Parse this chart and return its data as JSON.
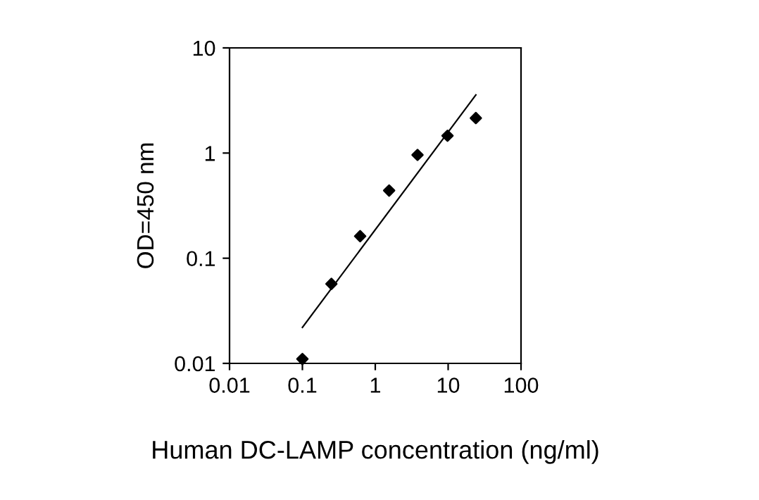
{
  "chart_data": {
    "type": "scatter",
    "xlabel": "Human DC-LAMP concentration (ng/ml)",
    "ylabel": "OD=450 nm",
    "log": "xy",
    "series": [
      {
        "color": "#000000",
        "marker": "diamond",
        "x": [
          0.1,
          0.25,
          0.62,
          1.55,
          3.8,
          9.8,
          24
        ],
        "values": [
          0.011,
          0.057,
          0.162,
          0.44,
          0.96,
          1.46,
          2.15
        ]
      },
      {
        "type": "line",
        "color": "#000000",
        "marker": "none",
        "x": [
          0.1,
          24
        ],
        "values": [
          0.022,
          3.57
        ]
      }
    ],
    "xlim": [
      0.01,
      100
    ],
    "ylim": [
      0.01,
      10
    ],
    "xticks": [
      0.01,
      0.1,
      1,
      10,
      100
    ],
    "yticks": [
      0.01,
      0.1,
      1,
      10
    ],
    "grid": false,
    "legend": false
  }
}
